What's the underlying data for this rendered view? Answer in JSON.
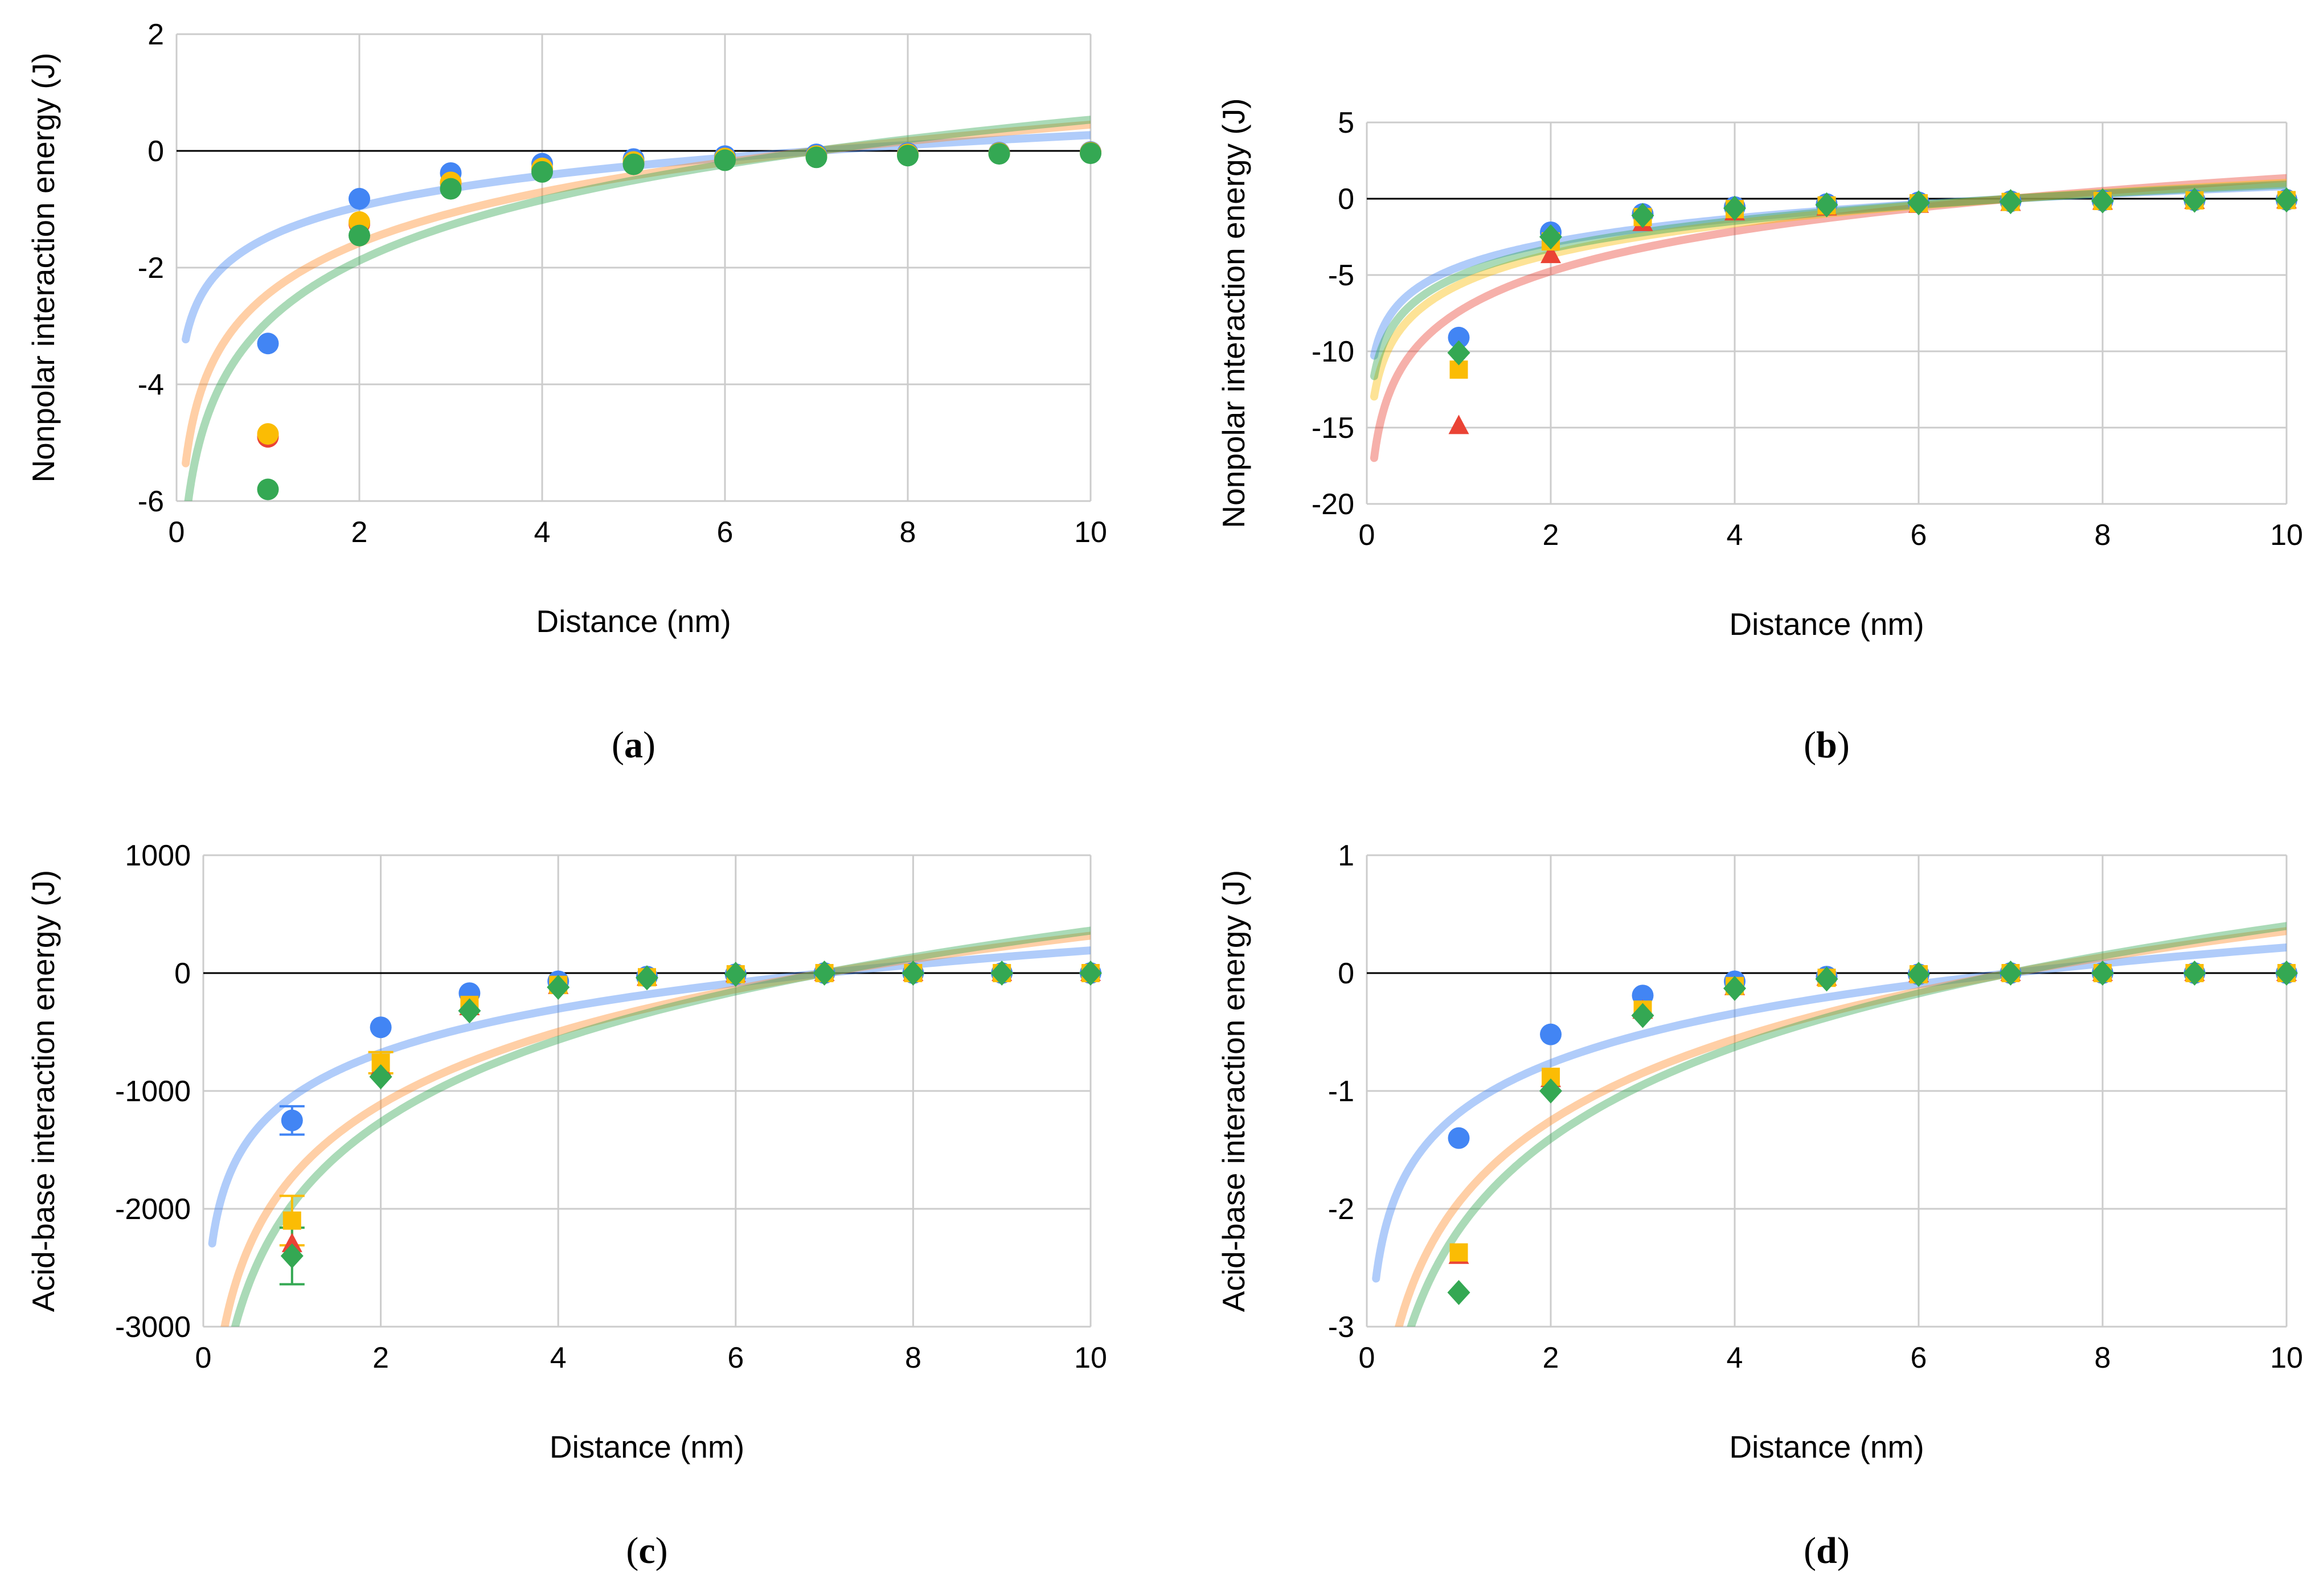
{
  "colors": {
    "blue": "#4285F4",
    "red": "#EA4335",
    "yellow": "#FBBC04",
    "green": "#34A853",
    "orange": "#FF8C2A",
    "grid": "#CCCCCC",
    "zero_line": "#000000"
  },
  "chart_data": [
    {
      "id": "a",
      "panel_label": "a",
      "type": "scatter",
      "xlabel": "Distance (nm)",
      "ylabel": "Nonpolar interaction energy (J)",
      "xlim": [
        0,
        10
      ],
      "ylim": [
        -6,
        2
      ],
      "xticks": [
        0,
        2,
        4,
        6,
        8,
        10
      ],
      "yticks": [
        -6,
        -4,
        -2,
        0,
        2
      ],
      "grid": true,
      "series": [
        {
          "color": "blue",
          "marker": "circle",
          "x": [
            1,
            2,
            3,
            4,
            5,
            6,
            7,
            8,
            9,
            10
          ],
          "y": [
            -3.3,
            -0.82,
            -0.38,
            -0.22,
            -0.14,
            -0.09,
            -0.06,
            -0.04,
            -0.03,
            -0.02
          ]
        },
        {
          "color": "red",
          "marker": "circle",
          "x": [
            1,
            2,
            3,
            4,
            5,
            6,
            7,
            8,
            9,
            10
          ],
          "y": [
            -4.9,
            -1.25,
            -0.55,
            -0.31,
            -0.2,
            -0.13,
            -0.09,
            -0.06,
            -0.04,
            -0.03
          ]
        },
        {
          "color": "yellow",
          "marker": "circle",
          "x": [
            1,
            2,
            3,
            4,
            5,
            6,
            7,
            8,
            9,
            10
          ],
          "y": [
            -4.85,
            -1.22,
            -0.54,
            -0.3,
            -0.19,
            -0.13,
            -0.09,
            -0.06,
            -0.04,
            -0.03
          ]
        },
        {
          "color": "green",
          "marker": "circle",
          "x": [
            1,
            2,
            3,
            4,
            5,
            6,
            7,
            8,
            9,
            10
          ],
          "y": [
            -5.8,
            -1.45,
            -0.65,
            -0.36,
            -0.23,
            -0.16,
            -0.11,
            -0.08,
            -0.05,
            -0.04
          ]
        }
      ],
      "trendlines": [
        {
          "color": "blue",
          "a": 0.76,
          "x0": 0.1,
          "xend": 10
        },
        {
          "color": "orange",
          "a": 1.26,
          "x0": 0.1,
          "xend": 10
        },
        {
          "color": "green",
          "a": 1.5,
          "x0": 0.1,
          "xend": 10
        }
      ]
    },
    {
      "id": "b",
      "panel_label": "b",
      "type": "scatter",
      "xlabel": "Distance (nm)",
      "ylabel": "Nonpolar interaction energy (J)",
      "xlim": [
        0,
        10
      ],
      "ylim": [
        -20,
        5
      ],
      "xticks": [
        0,
        2,
        4,
        6,
        8,
        10
      ],
      "yticks": [
        -20,
        -15,
        -10,
        -5,
        0,
        5
      ],
      "grid": true,
      "series": [
        {
          "color": "blue",
          "marker": "circle",
          "x": [
            1,
            2,
            3,
            4,
            5,
            6,
            7,
            8,
            9,
            10
          ],
          "y": [
            -9.1,
            -2.2,
            -1.0,
            -0.55,
            -0.35,
            -0.24,
            -0.17,
            -0.12,
            -0.09,
            -0.07
          ]
        },
        {
          "color": "red",
          "marker": "triangle",
          "x": [
            1,
            2,
            3,
            4,
            5,
            6,
            7,
            8,
            9,
            10
          ],
          "y": [
            -14.9,
            -3.7,
            -1.6,
            -0.9,
            -0.58,
            -0.4,
            -0.28,
            -0.2,
            -0.15,
            -0.12
          ]
        },
        {
          "color": "yellow",
          "marker": "square",
          "x": [
            1,
            2,
            3,
            4,
            5,
            6,
            7,
            8,
            9,
            10
          ],
          "y": [
            -11.2,
            -2.8,
            -1.2,
            -0.68,
            -0.44,
            -0.3,
            -0.21,
            -0.15,
            -0.11,
            -0.09
          ]
        },
        {
          "color": "green",
          "marker": "diamond",
          "x": [
            1,
            2,
            3,
            4,
            5,
            6,
            7,
            8,
            9,
            10
          ],
          "y": [
            -10.1,
            -2.5,
            -1.1,
            -0.62,
            -0.4,
            -0.27,
            -0.19,
            -0.14,
            -0.1,
            -0.08
          ]
        }
      ],
      "trendlines": [
        {
          "color": "blue",
          "a": 2.3,
          "x0": 0.08,
          "xend": 10
        },
        {
          "color": "red",
          "a": 3.8,
          "x0": 0.08,
          "xend": 10
        },
        {
          "color": "yellow",
          "a": 2.9,
          "x0": 0.08,
          "xend": 10
        },
        {
          "color": "green",
          "a": 2.6,
          "x0": 0.08,
          "xend": 10
        }
      ]
    },
    {
      "id": "c",
      "panel_label": "c",
      "type": "scatter",
      "xlabel": "Distance (nm)",
      "ylabel": "Acid-base interaction energy (J)",
      "xlim": [
        0,
        10
      ],
      "ylim": [
        -3000,
        1000
      ],
      "xticks": [
        0,
        2,
        4,
        6,
        8,
        10
      ],
      "yticks": [
        -3000,
        -2000,
        -1000,
        0,
        1000
      ],
      "grid": true,
      "series": [
        {
          "color": "blue",
          "marker": "circle",
          "x": [
            1,
            2,
            3,
            4,
            5,
            6,
            7,
            8,
            9,
            10
          ],
          "y": [
            -1250,
            -460,
            -170,
            -70,
            -30,
            -10,
            0,
            0,
            0,
            0
          ],
          "err": [
            120,
            0,
            0,
            0,
            0,
            0,
            0,
            0,
            0,
            0
          ]
        },
        {
          "color": "red",
          "marker": "triangle",
          "x": [
            1,
            2,
            3,
            4,
            5,
            6,
            7,
            8,
            9,
            10
          ],
          "y": [
            -2300,
            -800,
            -290,
            -110,
            -40,
            -10,
            0,
            0,
            0,
            0
          ],
          "err": [
            0,
            0,
            0,
            0,
            0,
            0,
            0,
            0,
            0,
            0
          ]
        },
        {
          "color": "yellow",
          "marker": "square",
          "x": [
            1,
            2,
            3,
            4,
            5,
            6,
            7,
            8,
            9,
            10
          ],
          "y": [
            -2100,
            -760,
            -270,
            -100,
            -35,
            -10,
            0,
            0,
            0,
            0
          ],
          "err": [
            210,
            90,
            0,
            0,
            0,
            0,
            0,
            0,
            0,
            0
          ]
        },
        {
          "color": "green",
          "marker": "diamond",
          "x": [
            1,
            2,
            3,
            4,
            5,
            6,
            7,
            8,
            9,
            10
          ],
          "y": [
            -2400,
            -880,
            -320,
            -120,
            -40,
            -10,
            0,
            0,
            0,
            0
          ],
          "err": [
            240,
            0,
            0,
            0,
            0,
            0,
            0,
            0,
            0,
            0
          ]
        }
      ],
      "trendlines": [
        {
          "color": "blue",
          "a": 540,
          "x0": 0.1,
          "xend": 10
        },
        {
          "color": "orange",
          "a": 890,
          "x0": 0.1,
          "xend": 10
        },
        {
          "color": "green",
          "a": 1010,
          "x0": 0.1,
          "xend": 10
        }
      ]
    },
    {
      "id": "d",
      "panel_label": "d",
      "type": "scatter",
      "xlabel": "Distance (nm)",
      "ylabel": "Acid-base interaction energy (J)",
      "xlim": [
        0,
        10
      ],
      "ylim": [
        -3,
        1
      ],
      "xticks": [
        0,
        2,
        4,
        6,
        8,
        10
      ],
      "yticks": [
        -3,
        -2,
        -1,
        0,
        1
      ],
      "grid": true,
      "series": [
        {
          "color": "blue",
          "marker": "circle",
          "x": [
            1,
            2,
            3,
            4,
            5,
            6,
            7,
            8,
            9,
            10
          ],
          "y": [
            -1.4,
            -0.52,
            -0.19,
            -0.07,
            -0.03,
            -0.01,
            0,
            0,
            0,
            0
          ]
        },
        {
          "color": "red",
          "marker": "triangle",
          "x": [
            1,
            2,
            3,
            4,
            5,
            6,
            7,
            8,
            9,
            10
          ],
          "y": [
            -2.4,
            -0.9,
            -0.32,
            -0.12,
            -0.04,
            -0.01,
            0,
            0,
            0,
            0
          ]
        },
        {
          "color": "yellow",
          "marker": "square",
          "x": [
            1,
            2,
            3,
            4,
            5,
            6,
            7,
            8,
            9,
            10
          ],
          "y": [
            -2.37,
            -0.88,
            -0.31,
            -0.11,
            -0.04,
            -0.01,
            0,
            0,
            0,
            0
          ]
        },
        {
          "color": "green",
          "marker": "diamond",
          "x": [
            1,
            2,
            3,
            4,
            5,
            6,
            7,
            8,
            9,
            10
          ],
          "y": [
            -2.71,
            -1.0,
            -0.36,
            -0.13,
            -0.05,
            -0.01,
            0,
            0,
            0,
            0
          ]
        }
      ],
      "trendlines": [
        {
          "color": "blue",
          "a": 0.61,
          "x0": 0.1,
          "xend": 10
        },
        {
          "color": "orange",
          "a": 1.0,
          "x0": 0.1,
          "xend": 10
        },
        {
          "color": "green",
          "a": 1.12,
          "x0": 0.1,
          "xend": 10
        }
      ]
    }
  ]
}
